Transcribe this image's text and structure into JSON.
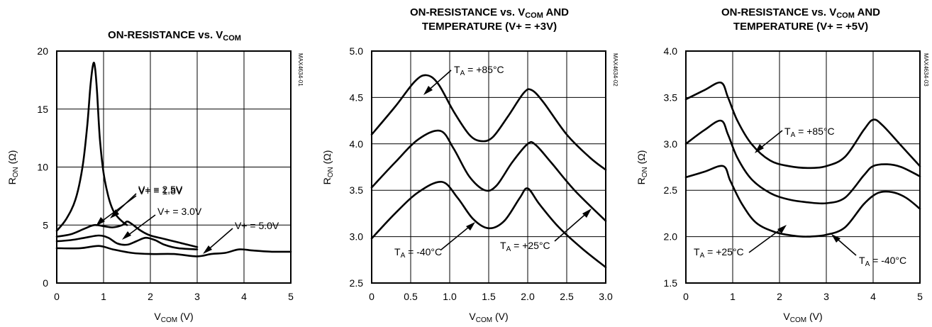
{
  "chart_data": [
    {
      "type": "line",
      "title": "ON-RESISTANCE vs. VCOM",
      "title_parts": [
        "ON-RESISTANCE vs. V",
        "COM"
      ],
      "xlabel_parts": [
        "V",
        "COM",
        " (V)"
      ],
      "ylabel_parts": [
        "R",
        "ON",
        " (Ω)"
      ],
      "code": "MAX4634-01",
      "xlim": [
        0,
        5
      ],
      "ylim": [
        0,
        20
      ],
      "xticks": [
        0,
        1,
        2,
        3,
        4,
        5
      ],
      "yticks": [
        0,
        5,
        10,
        15,
        20
      ],
      "xtick_labels": [
        "0",
        "1",
        "2",
        "3",
        "4",
        "5"
      ],
      "ytick_labels": [
        "0",
        "5",
        "10",
        "15",
        "20"
      ],
      "grid": true,
      "series": [
        {
          "name": "V+ = 1.8V",
          "x": [
            0,
            0.2,
            0.4,
            0.55,
            0.65,
            0.72,
            0.78,
            0.82,
            0.86,
            0.92,
            1.0,
            1.1,
            1.2,
            1.3,
            1.4,
            1.5
          ],
          "y": [
            4.5,
            5.5,
            7.2,
            10.0,
            13.5,
            17.0,
            18.9,
            18.5,
            16.5,
            12.5,
            9.5,
            7.5,
            6.3,
            5.7,
            5.3,
            5.0
          ]
        },
        {
          "name": "V+ = 2.5V",
          "x": [
            0,
            0.3,
            0.6,
            0.8,
            1.0,
            1.2,
            1.4,
            1.5,
            1.6,
            1.8,
            2.0,
            2.3,
            2.6,
            2.8,
            3.0
          ],
          "y": [
            4.0,
            4.2,
            4.7,
            5.0,
            4.9,
            4.8,
            5.0,
            5.3,
            5.1,
            4.5,
            4.1,
            3.8,
            3.5,
            3.3,
            3.1
          ]
        },
        {
          "name": "V+ = 3.0V",
          "x": [
            0,
            0.3,
            0.6,
            0.9,
            1.1,
            1.3,
            1.5,
            1.7,
            1.9,
            2.1,
            2.3,
            2.6,
            3.0
          ],
          "y": [
            3.6,
            3.7,
            3.9,
            4.1,
            3.9,
            3.4,
            3.3,
            3.6,
            3.9,
            3.7,
            3.3,
            3.0,
            2.9
          ]
        },
        {
          "name": "V+ = 5.0V",
          "x": [
            0,
            0.5,
            0.9,
            1.2,
            1.6,
            2.0,
            2.5,
            3.0,
            3.3,
            3.6,
            3.9,
            4.2,
            4.6,
            5.0
          ],
          "y": [
            3.0,
            3.0,
            3.2,
            2.9,
            2.6,
            2.5,
            2.5,
            2.3,
            2.5,
            2.6,
            2.9,
            2.8,
            2.7,
            2.7
          ]
        }
      ]
    },
    {
      "type": "line",
      "title": "ON-RESISTANCE vs. VCOM AND TEMPERATURE (V+ = +3V)",
      "title_parts": [
        "ON-RESISTANCE vs. V",
        "COM",
        " AND"
      ],
      "title_line2": "TEMPERATURE (V+ = +3V)",
      "xlabel_parts": [
        "V",
        "COM",
        " (V)"
      ],
      "ylabel_parts": [
        "R",
        "ON",
        " (Ω)"
      ],
      "code": "MAX4634-02",
      "xlim": [
        0,
        3.0
      ],
      "ylim": [
        2.5,
        5.0
      ],
      "xticks": [
        0,
        0.5,
        1.0,
        1.5,
        2.0,
        2.5,
        3.0
      ],
      "yticks": [
        2.5,
        3.0,
        3.5,
        4.0,
        4.5,
        5.0
      ],
      "xtick_labels": [
        "0",
        "0.5",
        "1.0",
        "1.5",
        "2.0",
        "2.5",
        "3.0"
      ],
      "ytick_labels": [
        "2.5",
        "3.0",
        "3.5",
        "4.0",
        "4.5",
        "5.0"
      ],
      "grid": true,
      "series": [
        {
          "name": "T_A = +85°C",
          "x": [
            0,
            0.3,
            0.55,
            0.7,
            0.85,
            1.05,
            1.25,
            1.4,
            1.55,
            1.75,
            1.95,
            2.05,
            2.2,
            2.5,
            2.8,
            3.0
          ],
          "y": [
            4.1,
            4.4,
            4.67,
            4.74,
            4.65,
            4.35,
            4.1,
            4.03,
            4.07,
            4.3,
            4.55,
            4.58,
            4.45,
            4.1,
            3.85,
            3.72
          ]
        },
        {
          "name": "T_A = +25°C",
          "x": [
            0,
            0.3,
            0.6,
            0.88,
            1.05,
            1.25,
            1.45,
            1.6,
            1.8,
            2.0,
            2.1,
            2.3,
            2.6,
            3.0
          ],
          "y": [
            3.53,
            3.8,
            4.05,
            4.14,
            3.95,
            3.65,
            3.5,
            3.55,
            3.8,
            4.0,
            3.99,
            3.8,
            3.5,
            3.17
          ]
        },
        {
          "name": "T_A = -40°C",
          "x": [
            0,
            0.3,
            0.6,
            0.9,
            1.1,
            1.3,
            1.5,
            1.7,
            1.9,
            2.0,
            2.15,
            2.4,
            2.7,
            3.0
          ],
          "y": [
            2.98,
            3.25,
            3.48,
            3.59,
            3.42,
            3.19,
            3.09,
            3.17,
            3.42,
            3.52,
            3.35,
            3.1,
            2.87,
            2.67
          ]
        }
      ],
      "annotations": [
        {
          "text_parts": [
            "T",
            "A",
            " = +85°C"
          ]
        },
        {
          "text_parts": [
            "T",
            "A",
            " = -40°C"
          ]
        },
        {
          "text_parts": [
            "T",
            "A",
            " = +25°C"
          ]
        }
      ]
    },
    {
      "type": "line",
      "title": "ON-RESISTANCE vs. VCOM AND TEMPERATURE (V+ = +5V)",
      "title_parts": [
        "ON-RESISTANCE vs. V",
        "COM",
        " AND"
      ],
      "title_line2": "TEMPERATURE (V+ = +5V)",
      "xlabel_parts": [
        "V",
        "COM",
        " (V)"
      ],
      "ylabel_parts": [
        "R",
        "ON",
        " (Ω)"
      ],
      "code": "MAX4634-03",
      "xlim": [
        0,
        5
      ],
      "ylim": [
        1.5,
        4.0
      ],
      "xticks": [
        0,
        1,
        2,
        3,
        4,
        5
      ],
      "yticks": [
        1.5,
        2.0,
        2.5,
        3.0,
        3.5,
        4.0
      ],
      "xtick_labels": [
        "0",
        "1",
        "2",
        "3",
        "4",
        "5"
      ],
      "ytick_labels": [
        "1.5",
        "2.0",
        "2.5",
        "3.0",
        "3.5",
        "4.0"
      ],
      "grid": true,
      "series": [
        {
          "name": "T_A = +85°C",
          "x": [
            0,
            0.4,
            0.75,
            0.9,
            1.1,
            1.4,
            1.8,
            2.2,
            2.6,
            3.0,
            3.4,
            3.8,
            4.0,
            4.2,
            4.6,
            5.0
          ],
          "y": [
            3.48,
            3.58,
            3.66,
            3.5,
            3.25,
            3.0,
            2.82,
            2.76,
            2.74,
            2.76,
            2.86,
            3.15,
            3.26,
            3.2,
            2.98,
            2.76
          ]
        },
        {
          "name": "T_A = +25°C",
          "x": [
            0,
            0.4,
            0.75,
            0.9,
            1.1,
            1.4,
            1.8,
            2.2,
            2.6,
            3.0,
            3.4,
            3.8,
            4.0,
            4.3,
            4.6,
            5.0
          ],
          "y": [
            3.0,
            3.15,
            3.25,
            3.1,
            2.85,
            2.62,
            2.47,
            2.4,
            2.37,
            2.36,
            2.42,
            2.66,
            2.76,
            2.78,
            2.75,
            2.65
          ]
        },
        {
          "name": "T_A = -40°C",
          "x": [
            0,
            0.4,
            0.8,
            0.95,
            1.2,
            1.5,
            1.9,
            2.3,
            2.6,
            3.0,
            3.4,
            3.8,
            4.1,
            4.4,
            4.7,
            5.0
          ],
          "y": [
            2.64,
            2.7,
            2.76,
            2.6,
            2.35,
            2.15,
            2.05,
            2.01,
            2.0,
            2.02,
            2.1,
            2.35,
            2.47,
            2.48,
            2.42,
            2.3
          ]
        }
      ],
      "annotations": [
        {
          "text_parts": [
            "T",
            "A",
            " = +85°C"
          ]
        },
        {
          "text_parts": [
            "T",
            "A",
            " = +25°C"
          ]
        },
        {
          "text_parts": [
            "T",
            "A",
            " = -40°C"
          ]
        }
      ]
    }
  ]
}
